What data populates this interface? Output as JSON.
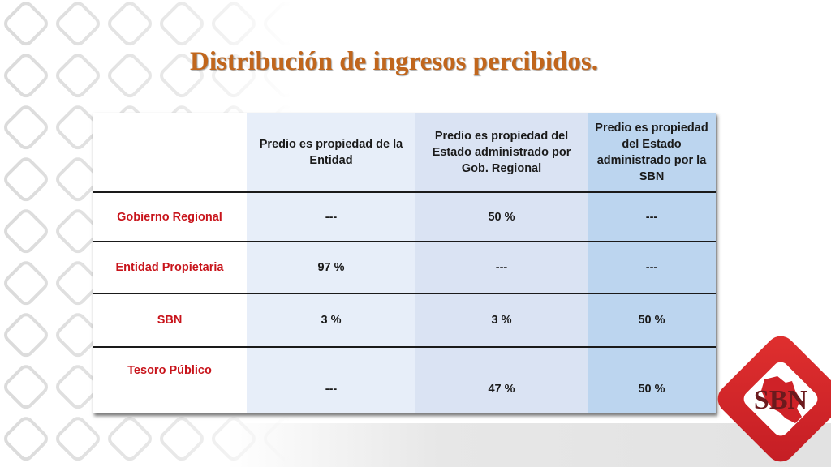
{
  "slide": {
    "title": "Distribución de ingresos percibidos."
  },
  "table": {
    "headers": [
      "",
      "Predio es propiedad de la Entidad",
      "Predio es propiedad del Estado administrado por Gob. Regional",
      "Predio es propiedad del Estado administrado por la SBN"
    ],
    "rows": [
      {
        "label": "Gobierno Regional",
        "values": [
          "---",
          "50 %",
          "---"
        ]
      },
      {
        "label": "Entidad Propietaria",
        "values": [
          "97 %",
          "---",
          "---"
        ]
      },
      {
        "label": "SBN",
        "values": [
          "3 %",
          "3 %",
          "50 %"
        ]
      },
      {
        "label": "Tesoro Público",
        "values": [
          "---",
          "47 %",
          "50 %"
        ]
      }
    ]
  },
  "logo": {
    "text": "SBN",
    "icon": "peru-map-icon",
    "color": "#d7262a"
  },
  "colors": {
    "title": "#c1661c",
    "row_label": "#c8141b",
    "col1_bg": "#e7eef9",
    "col2_bg": "#dae3f3",
    "col3_bg": "#bcd5ef"
  }
}
